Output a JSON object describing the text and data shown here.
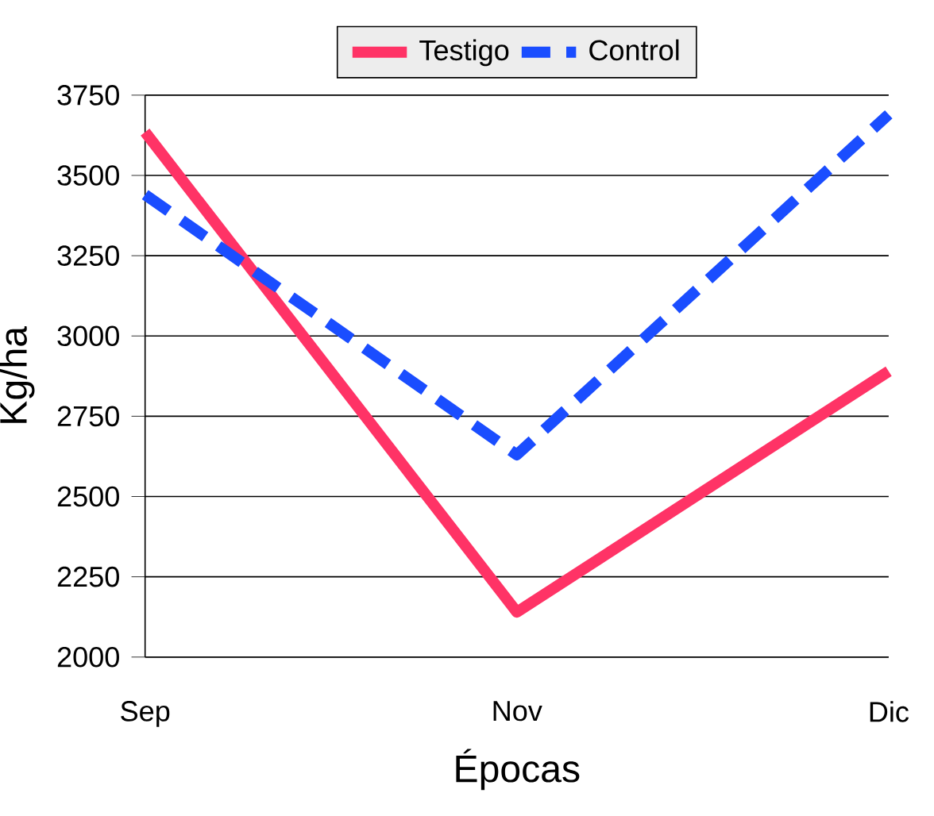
{
  "chart_data": {
    "type": "line",
    "xlabel": "Épocas",
    "ylabel": "Kg/ha",
    "categories": [
      "Sep",
      "Nov",
      "Dic"
    ],
    "series": [
      {
        "name": "Testigo",
        "color": "#ff3366",
        "line_style": "solid",
        "values": [
          3635,
          2140,
          2890
        ]
      },
      {
        "name": "Control",
        "color": "#1a4dff",
        "line_style": "dashed",
        "values": [
          3440,
          2630,
          3690
        ]
      }
    ],
    "ylim": [
      2000,
      3750
    ],
    "yticks": [
      2000,
      2250,
      2500,
      2750,
      3000,
      3250,
      3500,
      3750
    ],
    "grid": "y",
    "legend": "top",
    "marker": "none"
  }
}
